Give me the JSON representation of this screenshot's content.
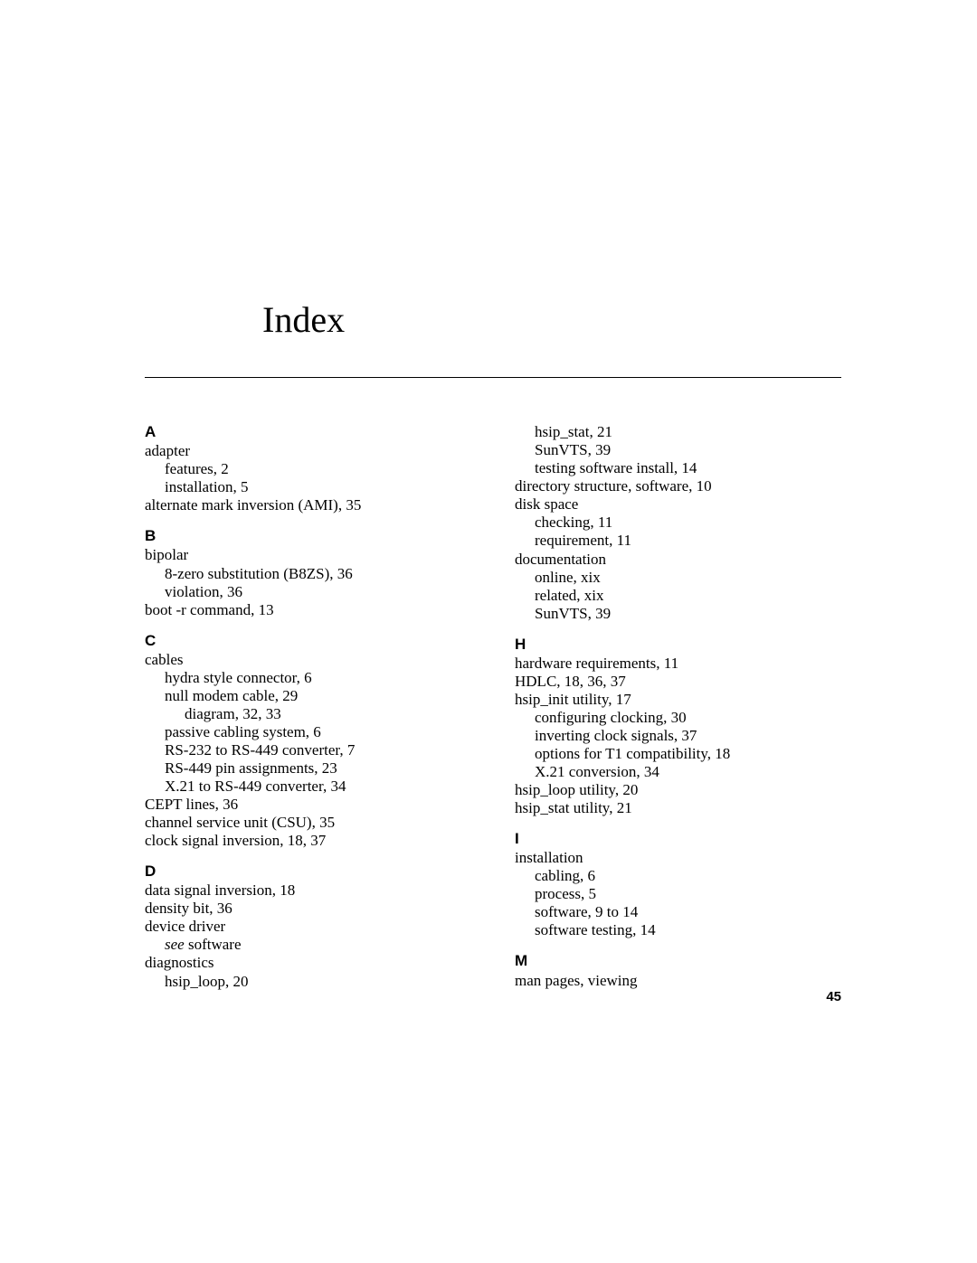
{
  "title": "Index",
  "page_number": "45",
  "left_column": [
    {
      "type": "letter",
      "text": "A",
      "first": true
    },
    {
      "type": "entry",
      "level": 1,
      "text": "adapter"
    },
    {
      "type": "entry",
      "level": 2,
      "text": "features,  2"
    },
    {
      "type": "entry",
      "level": 2,
      "text": "installation,  5"
    },
    {
      "type": "entry",
      "level": 1,
      "text": "alternate mark inversion (AMI),  35"
    },
    {
      "type": "letter",
      "text": "B"
    },
    {
      "type": "entry",
      "level": 1,
      "text": "bipolar"
    },
    {
      "type": "entry",
      "level": 2,
      "text": "8-zero substitution (B8ZS),  36"
    },
    {
      "type": "entry",
      "level": 2,
      "text": "violation,  36"
    },
    {
      "type": "entry",
      "level": 1,
      "text": "boot -r command,  13"
    },
    {
      "type": "letter",
      "text": "C"
    },
    {
      "type": "entry",
      "level": 1,
      "text": "cables"
    },
    {
      "type": "entry",
      "level": 2,
      "text": "hydra style connector,  6"
    },
    {
      "type": "entry",
      "level": 2,
      "text": "null modem cable,  29"
    },
    {
      "type": "entry",
      "level": 3,
      "text": "diagram,  32, 33"
    },
    {
      "type": "entry",
      "level": 2,
      "text": "passive cabling system,  6"
    },
    {
      "type": "entry",
      "level": 2,
      "text": "RS-232 to RS-449 converter,  7"
    },
    {
      "type": "entry",
      "level": 2,
      "text": "RS-449 pin assignments,  23"
    },
    {
      "type": "entry",
      "level": 2,
      "text": "X.21 to RS-449 converter,  34"
    },
    {
      "type": "entry",
      "level": 1,
      "text": "CEPT lines,  36"
    },
    {
      "type": "entry",
      "level": 1,
      "text": "channel service unit (CSU),  35"
    },
    {
      "type": "entry",
      "level": 1,
      "text": "clock signal inversion,  18, 37"
    },
    {
      "type": "letter",
      "text": "D"
    },
    {
      "type": "entry",
      "level": 1,
      "text": "data signal inversion,  18"
    },
    {
      "type": "entry",
      "level": 1,
      "text": "density bit,  36"
    },
    {
      "type": "entry",
      "level": 1,
      "text": "device driver"
    },
    {
      "type": "entry",
      "level": 2,
      "italic_prefix": "see",
      "text": " software"
    },
    {
      "type": "entry",
      "level": 1,
      "text": "diagnostics"
    },
    {
      "type": "entry",
      "level": 2,
      "text": "hsip_loop,  20"
    }
  ],
  "right_column": [
    {
      "type": "entry",
      "level": 2,
      "text": "hsip_stat,  21"
    },
    {
      "type": "entry",
      "level": 2,
      "text": "SunVTS,  39"
    },
    {
      "type": "entry",
      "level": 2,
      "text": "testing software install,  14"
    },
    {
      "type": "entry",
      "level": 1,
      "text": "directory structure, software,  10"
    },
    {
      "type": "entry",
      "level": 1,
      "text": "disk space"
    },
    {
      "type": "entry",
      "level": 2,
      "text": "checking,  11"
    },
    {
      "type": "entry",
      "level": 2,
      "text": "requirement,  11"
    },
    {
      "type": "entry",
      "level": 1,
      "text": "documentation"
    },
    {
      "type": "entry",
      "level": 2,
      "text": "online,  xix"
    },
    {
      "type": "entry",
      "level": 2,
      "text": "related,  xix"
    },
    {
      "type": "entry",
      "level": 2,
      "text": "SunVTS,  39"
    },
    {
      "type": "letter",
      "text": "H"
    },
    {
      "type": "entry",
      "level": 1,
      "text": "hardware requirements,  11"
    },
    {
      "type": "entry",
      "level": 1,
      "text": "HDLC,  18, 36, 37"
    },
    {
      "type": "entry",
      "level": 1,
      "text": "hsip_init utility,  17"
    },
    {
      "type": "entry",
      "level": 2,
      "text": "configuring clocking,  30"
    },
    {
      "type": "entry",
      "level": 2,
      "text": "inverting clock signals,  37"
    },
    {
      "type": "entry",
      "level": 2,
      "text": "options for T1 compatibility,  18"
    },
    {
      "type": "entry",
      "level": 2,
      "text": "X.21 conversion,  34"
    },
    {
      "type": "entry",
      "level": 1,
      "text": "hsip_loop utility,  20"
    },
    {
      "type": "entry",
      "level": 1,
      "text": "hsip_stat utility,  21"
    },
    {
      "type": "letter",
      "text": "I"
    },
    {
      "type": "entry",
      "level": 1,
      "text": "installation"
    },
    {
      "type": "entry",
      "level": 2,
      "text": "cabling,  6"
    },
    {
      "type": "entry",
      "level": 2,
      "text": "process,  5"
    },
    {
      "type": "entry",
      "level": 2,
      "text": "software,  9 to 14"
    },
    {
      "type": "entry",
      "level": 2,
      "text": "software testing,  14"
    },
    {
      "type": "letter",
      "text": "M"
    },
    {
      "type": "entry",
      "level": 1,
      "text": "man pages, viewing"
    }
  ]
}
